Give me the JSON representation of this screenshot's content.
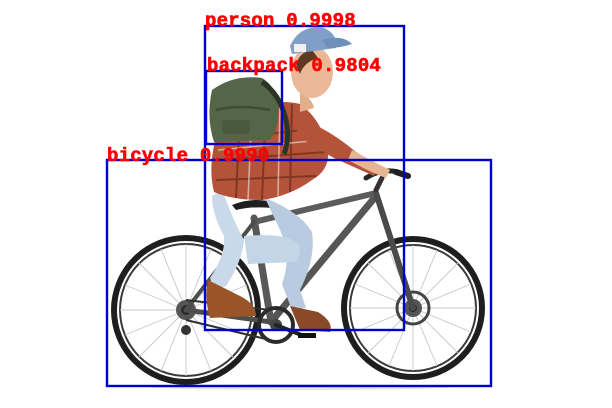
{
  "image": {
    "background_color": "#ffffff",
    "box_color": "#0000cc",
    "label_color": "#ff0000"
  },
  "detections": [
    {
      "label": "person",
      "score": "0.9998",
      "text": "person 0.9998"
    },
    {
      "label": "backpack",
      "score": "0.9804",
      "text": "backpack 0.9804"
    },
    {
      "label": "bicycle",
      "score": "0.9990",
      "text": "bicycle 0.9990"
    }
  ]
}
